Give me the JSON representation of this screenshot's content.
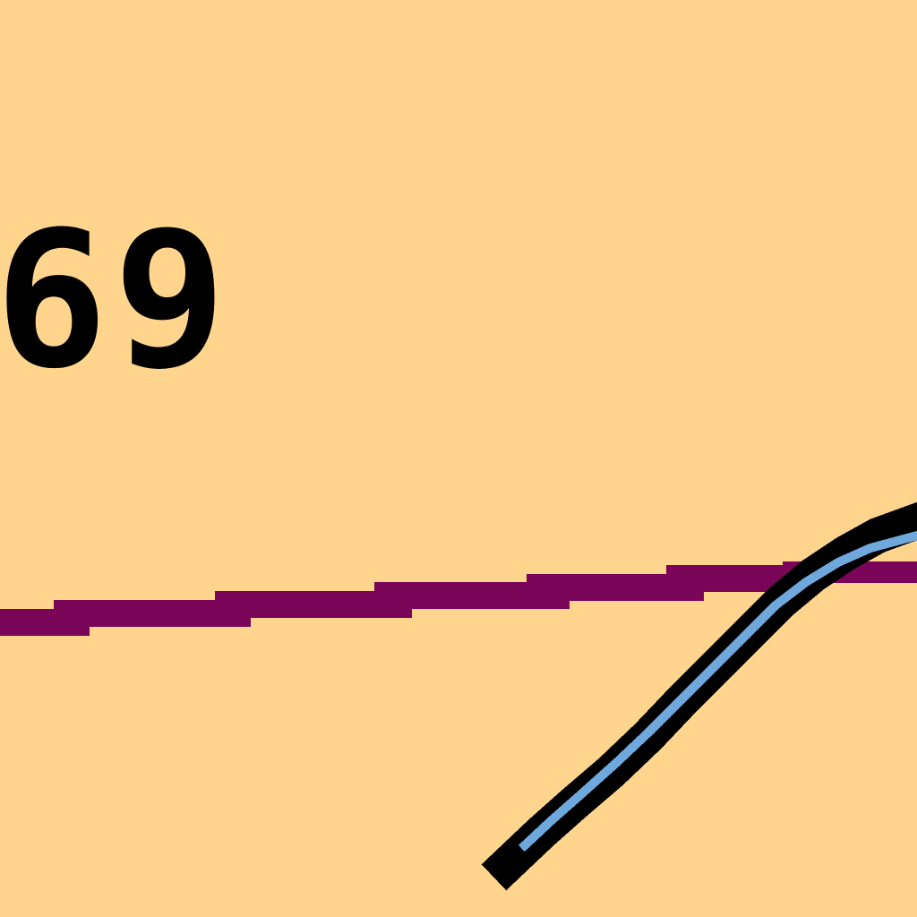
{
  "map": {
    "background_color": "#FFD58E",
    "depth_label": "69",
    "features": [
      {
        "name": "boundary-line",
        "color": "#7A0558"
      },
      {
        "name": "river-line",
        "outline_color": "#000000",
        "fill_color": "#6FA8DC"
      }
    ]
  }
}
